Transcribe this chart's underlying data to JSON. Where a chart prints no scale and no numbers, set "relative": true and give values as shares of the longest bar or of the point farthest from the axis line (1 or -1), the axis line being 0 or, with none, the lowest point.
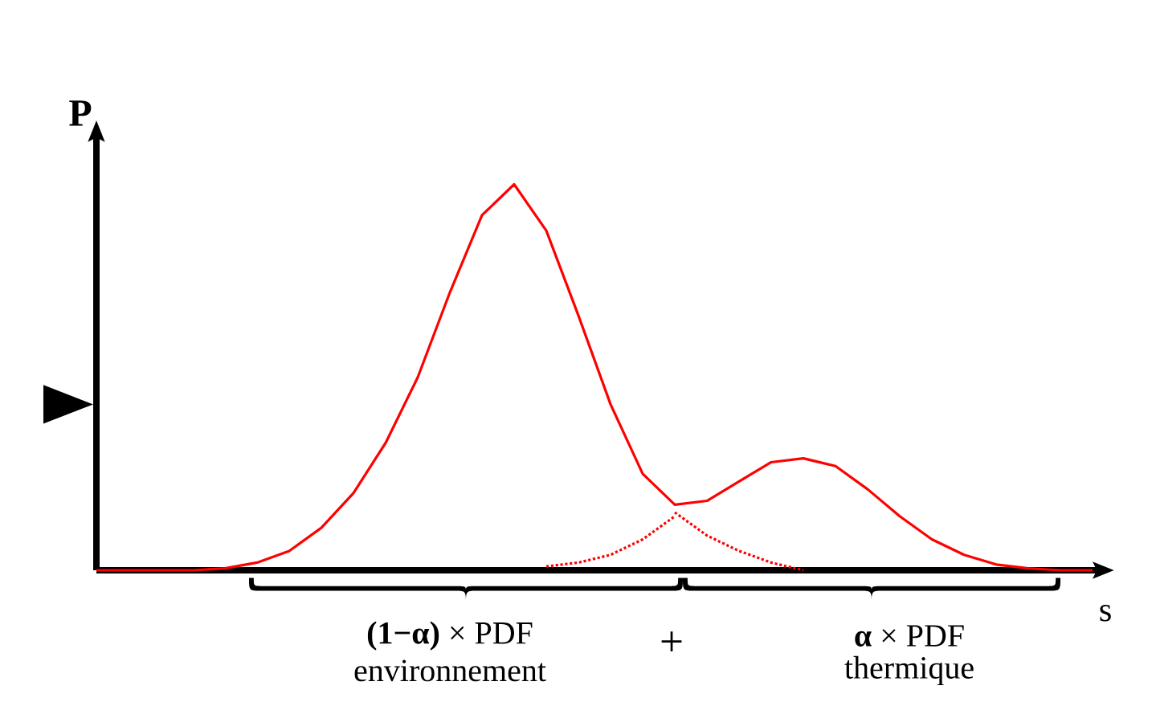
{
  "chart_data": {
    "type": "line",
    "relative": true,
    "xlabel": "s",
    "ylabel": "P",
    "marker": "none",
    "categories": [
      null,
      null,
      null,
      null,
      null,
      null,
      null,
      null,
      null,
      null,
      null,
      null,
      null,
      null,
      null,
      null,
      null,
      null,
      null,
      null,
      null,
      null,
      null,
      null,
      null,
      null,
      null,
      null,
      null,
      null,
      null,
      null
    ],
    "series": [
      {
        "color": "#ff0000",
        "line_style": "solid",
        "values": [
          0,
          0,
          0,
          0,
          0.005,
          0.02,
          0.05,
          0.11,
          0.2,
          0.33,
          0.5,
          0.72,
          0.92,
          1,
          0.88,
          0.66,
          0.43,
          0.25,
          0.17,
          0.18,
          0.23,
          0.28,
          0.29,
          0.27,
          0.21,
          0.14,
          0.08,
          0.04,
          0.015,
          0.005,
          0,
          0
        ]
      },
      {
        "color": "#ff0000",
        "line_style": "dotted",
        "values": [
          null,
          null,
          null,
          null,
          null,
          null,
          null,
          null,
          null,
          null,
          null,
          null,
          null,
          null,
          null,
          null,
          null,
          null,
          0.15,
          0.09,
          0.05,
          0.02,
          0,
          null,
          null,
          null,
          null,
          null,
          null,
          null,
          null,
          null
        ]
      },
      {
        "color": "#ff0000",
        "line_style": "dotted",
        "values": [
          null,
          null,
          null,
          null,
          null,
          null,
          null,
          null,
          null,
          null,
          null,
          null,
          null,
          null,
          0.01,
          0.02,
          0.04,
          0.08,
          0.14,
          null,
          null,
          null,
          null,
          null,
          null,
          null,
          null,
          null,
          null,
          null,
          null,
          null
        ]
      }
    ],
    "annotations": [
      "**(1−α)** × PDF",
      "environnement",
      "+",
      "**α** × PDF",
      "thermique"
    ]
  }
}
